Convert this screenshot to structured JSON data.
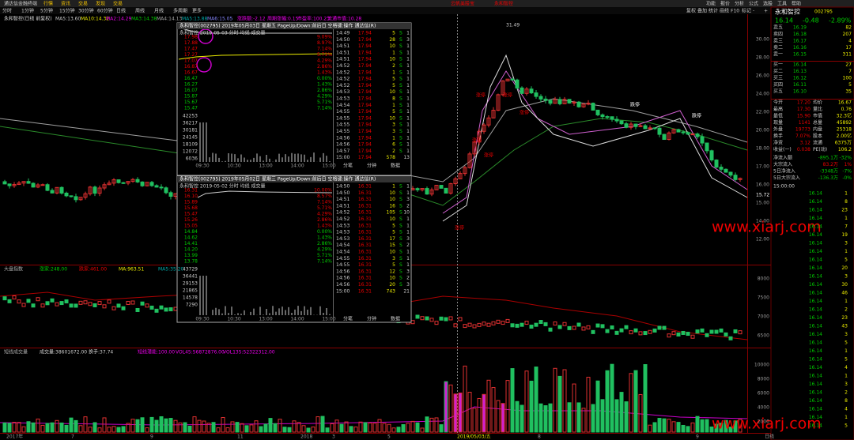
{
  "window": {
    "title": "通达信金融终端",
    "menu": [
      "行情",
      "资讯",
      "交易",
      "发现",
      "交易"
    ],
    "promo": [
      "云帆美股宝",
      "永和智控"
    ],
    "right_menu": [
      "功能",
      "报价",
      "分析",
      "公式",
      "选股",
      "工具",
      "帮助"
    ]
  },
  "toolbar": [
    "分时",
    "1分钟",
    "5分钟",
    "15分钟",
    "30分钟",
    "60分钟",
    "日线",
    "周线",
    "月线",
    "多周期",
    "更多"
  ],
  "side_tools": [
    "复权",
    "叠加",
    "统计",
    "画线",
    "F10",
    "标记",
    "-",
    "+"
  ],
  "chart": {
    "info": "永和智控(日线 前复权)",
    "ma": [
      "MA5:13.60",
      "MA10:14.32",
      "MA2:14.29",
      "MA3:14.38",
      "MA4:14.13",
      "MA5:13.88",
      "MA6:15.05"
    ],
    "extra": [
      "涨跌额:-2.12",
      "周期涨幅:0.15",
      "市盈率:100.23",
      "流通市值:10.28"
    ],
    "peak": "31.49",
    "axis": [
      "30.00",
      "28.00",
      "26.00",
      "24.00",
      "22.00",
      "20.00",
      "18.00",
      "17.00",
      "16.00",
      "15.00",
      "14.00",
      "12.00"
    ],
    "current": "15.72",
    "annotations": [
      "涨停",
      "涨停",
      "涨停",
      "涨停",
      "涨停",
      "涨停",
      "跌停",
      "跌停"
    ]
  },
  "index_panel": {
    "title": "大盘指数",
    "values": [
      "涨家:248.00",
      "跌家:461.00",
      "MA:963.51",
      "MA5:35.20"
    ],
    "axis": [
      "8000",
      "7500",
      "7000",
      "6500"
    ]
  },
  "volume_panel": {
    "title": "短线成交量",
    "values": [
      "成交量:38601672.00",
      "换手:37.74",
      "短线潜能:100.00"
    ],
    "vol": [
      "VOL45:56872876.00",
      "VOL135:52322312.00"
    ],
    "axis": [
      "10000",
      "8000",
      "6000",
      "4000",
      "2000"
    ]
  },
  "dates": [
    "2017年",
    "7",
    "9",
    "11",
    "2018",
    "3",
    "5",
    "2019/05/03/五",
    "8",
    "9",
    "日线"
  ],
  "popups": [
    {
      "title": "永和智控(002795) 2019年05月03日 星期五 PageUp/Down:前后日 空格键:操作 通达信(R)",
      "header": "永和智控 2019-05-03 分时 均线 成交量",
      "prices": [
        "17.98",
        "17.88",
        "17.47",
        "17.27",
        "17.07",
        "16.87",
        "16.67",
        "16.47",
        "16.27",
        "16.07",
        "15.87",
        "15.67",
        "15.47"
      ],
      "pcts": [
        "9.09%",
        "8.97%",
        "7.14%",
        "5.71%",
        "4.29%",
        "2.86%",
        "1.43%",
        "0.00%",
        "1.43%",
        "2.86%",
        "4.29%",
        "5.71%",
        "7.14%"
      ],
      "vols": [
        "42253",
        "36217",
        "30181",
        "24145",
        "18109",
        "12072",
        "6036"
      ],
      "times": [
        "09:30",
        "10:30",
        "13:00",
        "14:00",
        "15:00"
      ],
      "rows": [
        [
          "14:49",
          "17.94",
          "5",
          "S",
          "1"
        ],
        [
          "14:50",
          "17.94",
          "28",
          "S",
          "3"
        ],
        [
          "14:51",
          "17.94",
          "10",
          "S",
          "1"
        ],
        [
          "14:51",
          "17.94",
          "1",
          "S",
          "1"
        ],
        [
          "14:51",
          "17.94",
          "10",
          "S",
          "1"
        ],
        [
          "14:52",
          "17.94",
          "2",
          "S",
          "1"
        ],
        [
          "14:52",
          "17.94",
          "1",
          "S",
          "1"
        ],
        [
          "14:52",
          "17.94",
          "5",
          "S",
          "1"
        ],
        [
          "14:52",
          "17.94",
          "5",
          "S",
          "1"
        ],
        [
          "14:53",
          "17.94",
          "10",
          "S",
          "1"
        ],
        [
          "14:53",
          "17.94",
          "8",
          "S",
          "1"
        ],
        [
          "14:54",
          "17.94",
          "1",
          "S",
          "1"
        ],
        [
          "14:55",
          "17.94",
          "5",
          "S",
          "1"
        ],
        [
          "14:55",
          "17.94",
          "10",
          "S",
          "1"
        ],
        [
          "14:55",
          "17.94",
          "3",
          "S",
          "1"
        ],
        [
          "14:55",
          "17.94",
          "3",
          "S",
          "1"
        ],
        [
          "14:56",
          "17.94",
          "1",
          "S",
          "1"
        ],
        [
          "14:56",
          "17.94",
          "6",
          "S",
          "1"
        ],
        [
          "14:57",
          "17.94",
          "2",
          "S",
          "1"
        ],
        [
          "15:00",
          "17.94",
          "578",
          "",
          "13"
        ]
      ],
      "tabs": [
        "分笔",
        "分钟",
        "数据"
      ]
    },
    {
      "title": "永和智控(002795) 2019年05月02日 星期三 PageUp/Down:前后日 空格键:操作 通达信(R)",
      "header": "永和智控 2019-05-02 分时 均线 成交量",
      "prices": [
        "16.31",
        "16.10",
        "15.89",
        "15.68",
        "15.47",
        "15.26",
        "15.05",
        "14.84",
        "14.62",
        "14.41",
        "14.20",
        "13.99",
        "13.78"
      ],
      "pcts": [
        "10.00%",
        "8.57%",
        "7.14%",
        "5.71%",
        "4.29%",
        "2.86%",
        "1.43%",
        "0.00%",
        "1.43%",
        "2.86%",
        "4.29%",
        "5.71%",
        "7.14%"
      ],
      "vols": [
        "43729",
        "36441",
        "29153",
        "21865",
        "14578",
        "7290"
      ],
      "times": [
        "09:30",
        "10:30",
        "13:00",
        "14:00",
        "15:00"
      ],
      "rows": [
        [
          "14:50",
          "16.31",
          "1",
          "S",
          "1"
        ],
        [
          "14:50",
          "16.31",
          "10",
          "S",
          "1"
        ],
        [
          "14:51",
          "16.31",
          "10",
          "S",
          "3"
        ],
        [
          "14:51",
          "16.31",
          "16",
          "S",
          "2"
        ],
        [
          "14:52",
          "16.31",
          "105",
          "S",
          "10"
        ],
        [
          "14:52",
          "16.31",
          "10",
          "S",
          "1"
        ],
        [
          "14:53",
          "16.31",
          "5",
          "S",
          "1"
        ],
        [
          "14:53",
          "16.31",
          "5",
          "S",
          "1"
        ],
        [
          "14:53",
          "16.31",
          "17",
          "S",
          "3"
        ],
        [
          "14:54",
          "16.31",
          "15",
          "S",
          "2"
        ],
        [
          "14:54",
          "16.31",
          "10",
          "S",
          "1"
        ],
        [
          "14:55",
          "16.31",
          "3",
          "S",
          "1"
        ],
        [
          "14:55",
          "16.31",
          "5",
          "S",
          "1"
        ],
        [
          "14:56",
          "16.31",
          "12",
          "S",
          "3"
        ],
        [
          "14:56",
          "16.31",
          "10",
          "S",
          "2"
        ],
        [
          "14:56",
          "16.31",
          "20",
          "S",
          "3"
        ],
        [
          "15:00",
          "16.31",
          "743",
          "",
          "21"
        ]
      ],
      "tabs": [
        "分笔",
        "分钟",
        "数据"
      ]
    }
  ],
  "quote": {
    "name": "永和智控",
    "code": "002795",
    "price": "16.14",
    "change": "-0.48",
    "pct": "-2.89%",
    "asks": [
      [
        "卖五",
        "16.19",
        "82"
      ],
      [
        "卖四",
        "16.18",
        "207"
      ],
      [
        "卖三",
        "16.17",
        "4"
      ],
      [
        "卖二",
        "16.16",
        "17"
      ],
      [
        "卖一",
        "16.15",
        "311"
      ]
    ],
    "bids": [
      [
        "买一",
        "16.14",
        "27"
      ],
      [
        "买二",
        "16.13",
        "7"
      ],
      [
        "买三",
        "16.12",
        "100"
      ],
      [
        "买四",
        "16.11",
        "5"
      ],
      [
        "买五",
        "16.10",
        "35"
      ]
    ],
    "stats": [
      [
        "今开",
        "17.20",
        "均价",
        "16.67"
      ],
      [
        "最高",
        "17.30",
        "量比",
        "0.76"
      ],
      [
        "最低",
        "15.90",
        "市值",
        "32.3亿"
      ],
      [
        "现量",
        "1141",
        "总量",
        "45892"
      ],
      [
        "外盘",
        "19773",
        "内盘",
        "25318"
      ],
      [
        "换手",
        "7.07%",
        "股本",
        "2.00亿"
      ],
      [
        "净资",
        "3.12",
        "流通",
        "6375万"
      ],
      [
        "收益(一)",
        "0.038",
        "PE(动)",
        "106.2"
      ]
    ],
    "flows": [
      [
        "净流入额",
        "-895.1万",
        "-32%"
      ],
      [
        "大宗流入",
        "83.2万",
        "1%"
      ],
      [
        "5日净流入",
        "-3348万",
        "-7%"
      ],
      [
        "5日大宗流入",
        "-136.3万",
        "-0%"
      ]
    ],
    "tick_time": "15:00:00",
    "ticks": [
      [
        "16.14",
        "1"
      ],
      [
        "16.14",
        "8"
      ],
      [
        "16.14",
        "23"
      ],
      [
        "16.14",
        "1"
      ],
      [
        "16.14",
        "7"
      ],
      [
        "16.14",
        "19"
      ],
      [
        "16.14",
        "3"
      ],
      [
        "16.14",
        "1"
      ],
      [
        "16.14",
        "5"
      ],
      [
        "16.14",
        "20"
      ],
      [
        "16.14",
        "3"
      ],
      [
        "16.14",
        "30"
      ],
      [
        "16.14",
        "46"
      ],
      [
        "16.14",
        "1"
      ],
      [
        "16.14",
        "2"
      ],
      [
        "16.14",
        "23"
      ],
      [
        "16.14",
        "43"
      ],
      [
        "16.14",
        "3"
      ],
      [
        "16.14",
        "5"
      ],
      [
        "16.14",
        "1"
      ],
      [
        "16.14",
        "5"
      ],
      [
        "16.14",
        "4"
      ],
      [
        "16.14",
        "1"
      ],
      [
        "16.14",
        "3"
      ],
      [
        "16.14",
        "2"
      ],
      [
        "16.14",
        "8"
      ],
      [
        "16.14",
        "4"
      ],
      [
        "16.14",
        "1"
      ],
      [
        "16.14",
        "5"
      ]
    ]
  },
  "watermark": "www.xiarj.com"
}
